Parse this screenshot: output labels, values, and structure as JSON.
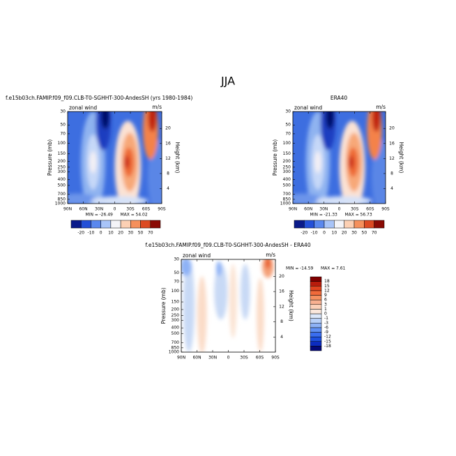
{
  "title": "JJA",
  "chart_data": [
    {
      "type": "contour",
      "title": "f.e15b03ch.FAMIP.f09_f09.CLB-T0-SGHHT-300-AndesSH (yrs 1980-1984)",
      "left_string": "zonal wind",
      "right_string": "m/s",
      "ylabel": "Pressure (mb)",
      "y2label": "Height (km)",
      "xlim": [
        90,
        -90
      ],
      "xticks": [
        {
          "value": 90,
          "label": "90N"
        },
        {
          "value": 60,
          "label": "60N"
        },
        {
          "value": 30,
          "label": "30N"
        },
        0,
        {
          "value": -30,
          "label": "30S"
        },
        {
          "value": -60,
          "label": "60S"
        },
        {
          "value": -90,
          "label": "90S"
        }
      ],
      "ylim": [
        1000,
        30
      ],
      "ylog": true,
      "yticks": [
        30,
        50,
        70,
        100,
        150,
        200,
        250,
        300,
        400,
        500,
        700,
        850,
        1000
      ],
      "y2lim": [
        0,
        24.5
      ],
      "y2ticks": [
        4,
        8,
        12,
        16,
        20
      ],
      "stats": {
        "min_label": "MIN =",
        "min": -26.49,
        "max_label": "MAX =",
        "max": 54.02
      },
      "colorbar": {
        "orientation": "horizontal",
        "levels": [
          -20,
          -10,
          0,
          10,
          20,
          30,
          50,
          70
        ],
        "colors": [
          "#0a1a8a",
          "#2450d8",
          "#5a88ee",
          "#a8c4f8",
          "#f4f4f8",
          "#fcd0b4",
          "#f5905c",
          "#dc4a22",
          "#8a0a04"
        ]
      }
    },
    {
      "type": "contour",
      "title": "ERA40",
      "left_string": "zonal wind",
      "right_string": "m/s",
      "ylabel": "Pressure (mb)",
      "y2label": "Height (km)",
      "xlim": [
        90,
        -90
      ],
      "xticks": [
        {
          "value": 90,
          "label": "90N"
        },
        {
          "value": 60,
          "label": "60N"
        },
        {
          "value": 30,
          "label": "30N"
        },
        0,
        {
          "value": -30,
          "label": "30S"
        },
        {
          "value": -60,
          "label": "60S"
        },
        {
          "value": -90,
          "label": "90S"
        }
      ],
      "ylim": [
        1000,
        30
      ],
      "ylog": true,
      "yticks": [
        30,
        50,
        70,
        100,
        150,
        200,
        250,
        300,
        400,
        500,
        700,
        850,
        1000
      ],
      "y2lim": [
        0,
        24.5
      ],
      "y2ticks": [
        4,
        8,
        12,
        16,
        20
      ],
      "stats": {
        "min_label": "MIN =",
        "min": -21.33,
        "max_label": "MAX =",
        "max": 56.73
      },
      "colorbar": {
        "orientation": "horizontal",
        "levels": [
          -20,
          -10,
          0,
          10,
          20,
          30,
          50,
          70
        ],
        "colors": [
          "#0a1a8a",
          "#2450d8",
          "#5a88ee",
          "#a8c4f8",
          "#f4f4f8",
          "#fcd0b4",
          "#f5905c",
          "#dc4a22",
          "#8a0a04"
        ]
      }
    },
    {
      "type": "contour",
      "title": "f.e15b03ch.FAMIP.f09_f09.CLB-T0-SGHHT-300-AndesSH - ERA40",
      "left_string": "zonal wind",
      "right_string": "m/s",
      "ylabel": "Pressure (mb)",
      "y2label": "Height (km)",
      "xlim": [
        90,
        -90
      ],
      "xticks": [
        {
          "value": 90,
          "label": "90N"
        },
        {
          "value": 60,
          "label": "60N"
        },
        {
          "value": 30,
          "label": "30N"
        },
        0,
        {
          "value": -30,
          "label": "30S"
        },
        {
          "value": -60,
          "label": "60S"
        },
        {
          "value": -90,
          "label": "90S"
        }
      ],
      "ylim": [
        1000,
        30
      ],
      "ylog": true,
      "yticks": [
        30,
        50,
        70,
        100,
        150,
        200,
        250,
        300,
        400,
        500,
        700,
        850,
        1000
      ],
      "y2lim": [
        0,
        24.5
      ],
      "y2ticks": [
        4,
        8,
        12,
        16,
        20
      ],
      "stats": {
        "min_label": "MIN =",
        "min": -14.59,
        "max_label": "MAX =",
        "max": 7.61
      },
      "colorbar": {
        "orientation": "vertical",
        "levels": [
          -18,
          -15,
          -12,
          -9,
          -6,
          -3,
          -1,
          0,
          1,
          3,
          6,
          9,
          12,
          15,
          18
        ],
        "colors": [
          "#050a7a",
          "#0c2cc0",
          "#1e50e0",
          "#3a6ef0",
          "#6090f4",
          "#8eb2f6",
          "#b8d0f8",
          "#dce8fa",
          "#fbe8dc",
          "#fbd0b8",
          "#f8b090",
          "#f59060",
          "#f06a3a",
          "#e04420",
          "#b81c0c",
          "#800000"
        ]
      }
    }
  ]
}
